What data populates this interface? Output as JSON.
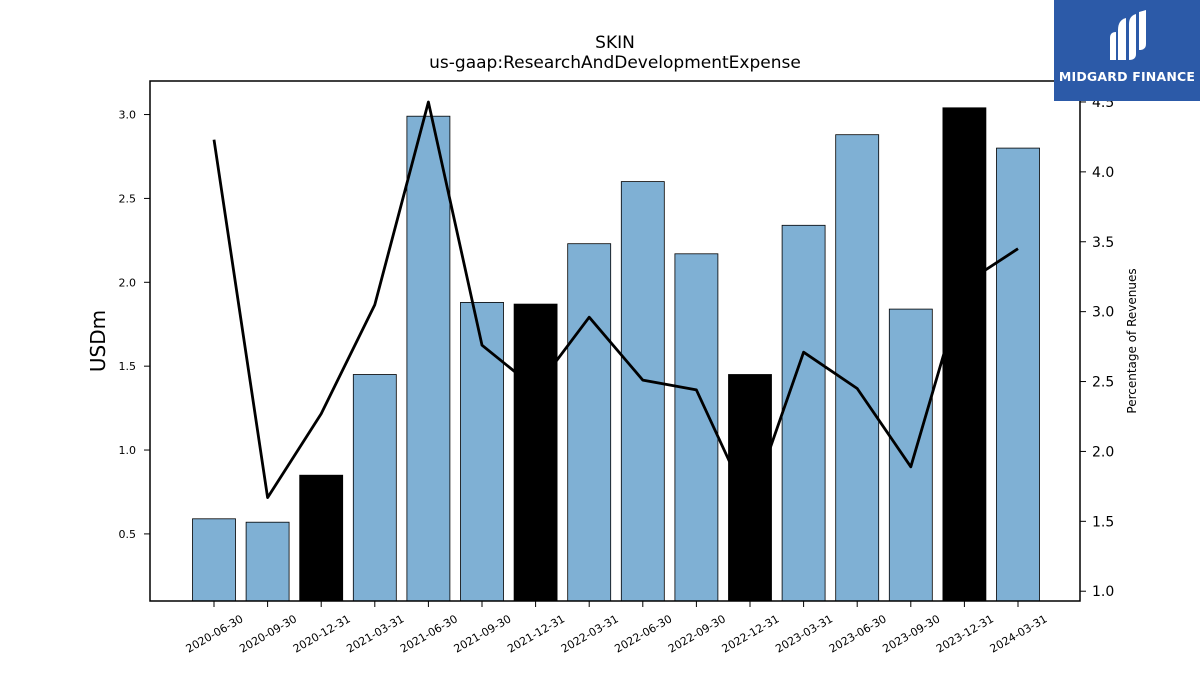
{
  "chart_data": {
    "type": "bar",
    "title": "SKIN",
    "subtitle": "us-gaap:ResearchAndDevelopmentExpense",
    "ylabel": "USDm",
    "ylabel_right": "Percentage of Revenues",
    "categories": [
      "2020-06-30",
      "2020-09-30",
      "2020-12-31",
      "2021-03-31",
      "2021-06-30",
      "2021-09-30",
      "2021-12-31",
      "2022-03-31",
      "2022-06-30",
      "2022-09-30",
      "2022-12-31",
      "2023-03-31",
      "2023-06-30",
      "2023-09-30",
      "2023-12-31",
      "2024-03-31"
    ],
    "series": [
      {
        "values": [
          0.59,
          0.57,
          0.85,
          1.45,
          2.99,
          1.88,
          1.87,
          2.23,
          2.6,
          2.17,
          1.45,
          2.34,
          2.88,
          1.84,
          3.04,
          2.8
        ],
        "colors": [
          "#7fb0d4",
          "#7fb0d4",
          "#000000",
          "#7fb0d4",
          "#7fb0d4",
          "#7fb0d4",
          "#000000",
          "#7fb0d4",
          "#7fb0d4",
          "#7fb0d4",
          "#000000",
          "#7fb0d4",
          "#7fb0d4",
          "#7fb0d4",
          "#000000",
          "#7fb0d4"
        ]
      },
      {
        "type": "line",
        "axis": "right",
        "values": [
          4.23,
          1.67,
          2.27,
          3.05,
          4.5,
          2.76,
          2.45,
          2.96,
          2.51,
          2.44,
          1.61,
          2.71,
          2.45,
          1.89,
          3.2,
          3.45
        ]
      }
    ],
    "ylim": [
      0.1,
      3.2
    ],
    "yticks": [
      "0.5",
      "1.0",
      "1.5",
      "2.0",
      "2.5",
      "3.0"
    ],
    "ylim_right": [
      0.93,
      4.65
    ],
    "yticks_right": [
      "1.0",
      "1.5",
      "2.0",
      "2.5",
      "3.0",
      "3.5",
      "4.0",
      "4.5"
    ],
    "colors": {
      "bar": "#7fb0d4",
      "bar_highlight": "#000000",
      "line": "#000000"
    }
  },
  "logo": {
    "text": "MIDGARD FINANCE",
    "background": "#2c5aa8",
    "icon": "midgard-logo-icon"
  }
}
